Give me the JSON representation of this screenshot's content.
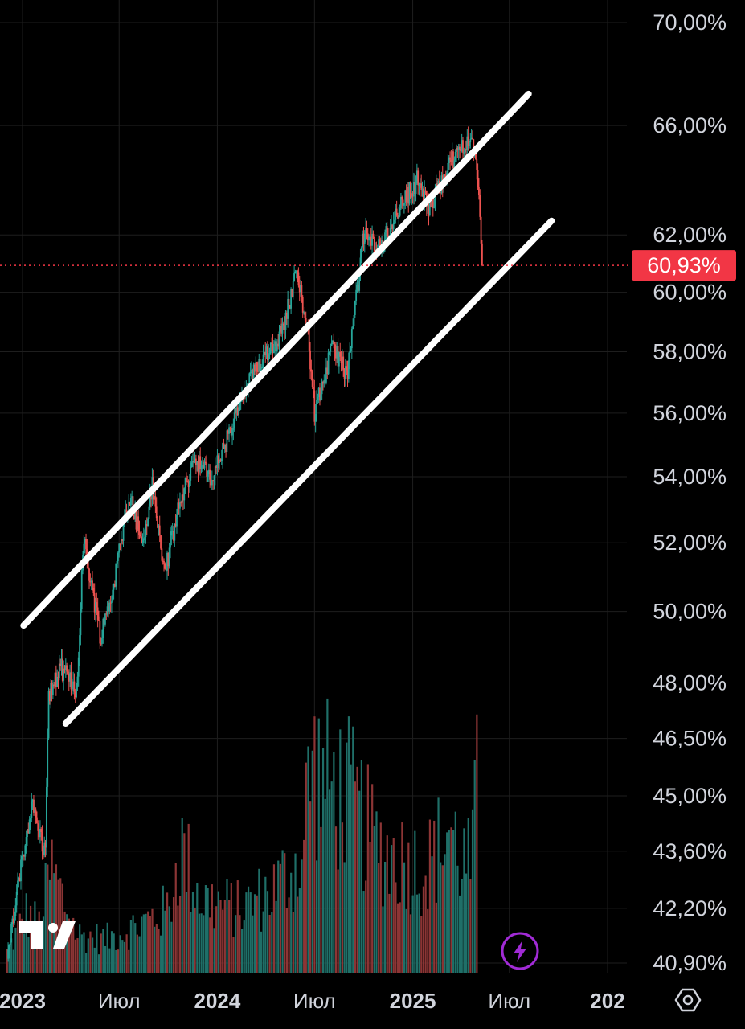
{
  "colors": {
    "background": "#000000",
    "grid": "#1e1e1e",
    "up": "#26a69a",
    "down": "#ef5350",
    "channel": "#ffffff",
    "price_tag": "#f23645",
    "text": "#d1d4dc",
    "lightning_accent": "#a12bd6"
  },
  "icons": {
    "logo": "tradingview-logo-icon",
    "lightning": "lightning-icon",
    "settings": "hexagon-settings-icon"
  },
  "chart_data": {
    "type": "candlestick",
    "title": "",
    "xlabel": "",
    "ylabel": "",
    "y_scale": "log",
    "ylim": [
      40.5,
      71.0
    ],
    "y_tick_labels": [
      "70,00%",
      "66,00%",
      "62,00%",
      "60,00%",
      "58,00%",
      "56,00%",
      "54,00%",
      "52,00%",
      "50,00%",
      "48,00%",
      "46,50%",
      "45,00%",
      "43,60%",
      "42,20%",
      "40,90%"
    ],
    "y_tick_values": [
      70.0,
      66.0,
      62.0,
      60.0,
      58.0,
      56.0,
      54.0,
      52.0,
      50.0,
      48.0,
      46.5,
      45.0,
      43.6,
      42.2,
      40.9
    ],
    "x_tick_labels": [
      "2023",
      "Июл",
      "2024",
      "Июл",
      "2025",
      "Июл",
      "202"
    ],
    "x_tick_dates": [
      "2023-01-01",
      "2023-07-01",
      "2024-01-01",
      "2024-07-01",
      "2025-01-01",
      "2025-07-01",
      "2026-01-01"
    ],
    "x_range": [
      "2023-01-01",
      "2026-01-01"
    ],
    "last_price": {
      "label": "60,93%",
      "value": 60.93
    },
    "channel_lines": [
      {
        "name": "upper",
        "points": [
          [
            "2023-01-03",
            49.6
          ],
          [
            "2025-08-06",
            67.2
          ]
        ]
      },
      {
        "name": "lower",
        "points": [
          [
            "2023-03-23",
            46.9
          ],
          [
            "2025-09-18",
            62.5
          ]
        ]
      }
    ],
    "price_path": [
      [
        "2022-12-03",
        41.0
      ],
      [
        "2023-01-18",
        44.8
      ],
      [
        "2023-02-13",
        43.5
      ],
      [
        "2023-02-18",
        47.6
      ],
      [
        "2023-03-14",
        48.4
      ],
      [
        "2023-04-13",
        47.8
      ],
      [
        "2023-04-25",
        52.1
      ],
      [
        "2023-05-27",
        49.3
      ],
      [
        "2023-06-19",
        50.6
      ],
      [
        "2023-07-20",
        53.5
      ],
      [
        "2023-08-14",
        51.9
      ],
      [
        "2023-09-01",
        53.7
      ],
      [
        "2023-09-24",
        51.1
      ],
      [
        "2023-10-20",
        53.0
      ],
      [
        "2023-11-20",
        54.6
      ],
      [
        "2023-12-20",
        53.9
      ],
      [
        "2024-01-30",
        55.6
      ],
      [
        "2024-02-24",
        56.8
      ],
      [
        "2024-03-29",
        57.9
      ],
      [
        "2024-04-30",
        58.6
      ],
      [
        "2024-05-30",
        60.8
      ],
      [
        "2024-06-20",
        58.4
      ],
      [
        "2024-07-01",
        56.0
      ],
      [
        "2024-08-05",
        58.2
      ],
      [
        "2024-09-01",
        57.2
      ],
      [
        "2024-10-01",
        62.0
      ],
      [
        "2024-11-01",
        61.5
      ],
      [
        "2024-12-01",
        62.8
      ],
      [
        "2025-01-10",
        64.0
      ],
      [
        "2025-02-01",
        62.9
      ],
      [
        "2025-03-01",
        64.2
      ],
      [
        "2025-04-15",
        65.6
      ],
      [
        "2025-05-01",
        64.6
      ],
      [
        "2025-05-12",
        60.93
      ]
    ],
    "volume": {
      "note": "",
      "bars": [
        [
          "2022-12-03",
          0.1
        ],
        [
          "2023-01-08",
          0.28
        ],
        [
          "2023-02-03",
          0.22
        ],
        [
          "2023-02-23",
          0.5
        ],
        [
          "2023-04-13",
          0.18
        ],
        [
          "2023-06-07",
          0.16
        ],
        [
          "2023-08-01",
          0.22
        ],
        [
          "2023-10-01",
          0.3
        ],
        [
          "2023-10-25",
          0.6
        ],
        [
          "2023-12-01",
          0.35
        ],
        [
          "2024-02-13",
          0.3
        ],
        [
          "2024-04-15",
          0.4
        ],
        [
          "2024-06-10",
          0.55
        ],
        [
          "2024-06-20",
          1.0
        ],
        [
          "2024-07-26",
          0.9
        ],
        [
          "2024-09-01",
          0.85
        ],
        [
          "2024-10-26",
          0.6
        ],
        [
          "2024-12-01",
          0.55
        ],
        [
          "2025-01-26",
          0.5
        ],
        [
          "2025-02-19",
          0.6
        ],
        [
          "2025-03-10",
          0.7
        ],
        [
          "2025-04-01",
          0.55
        ],
        [
          "2025-04-20",
          0.5
        ],
        [
          "2025-05-03",
          0.92
        ]
      ]
    }
  }
}
